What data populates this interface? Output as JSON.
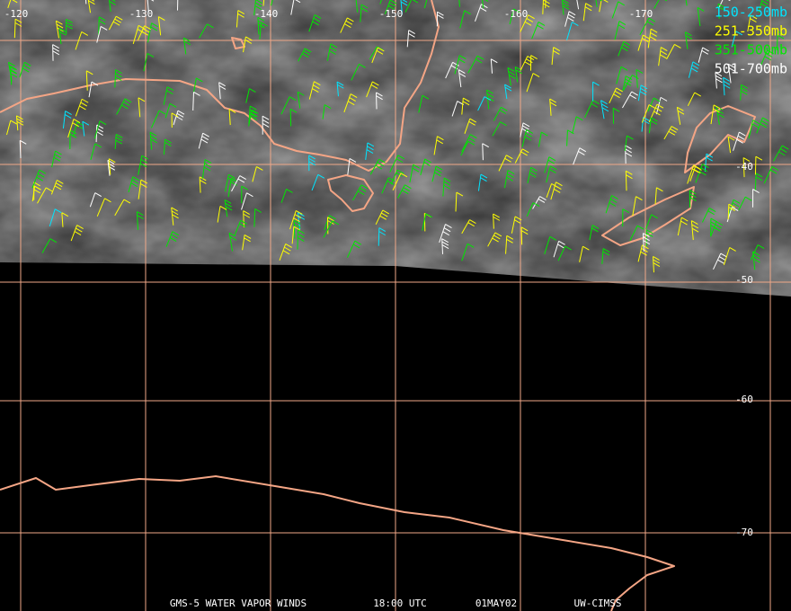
{
  "title": {
    "lon_labels": [
      "-120",
      "-130",
      "-140",
      "-150",
      "-160",
      "-170"
    ],
    "lat_labels": [
      "-40",
      "-50",
      "-60",
      "-70"
    ]
  },
  "legend": [
    {
      "label": "150-250mb",
      "color": "#00e5ff"
    },
    {
      "label": "251-350mb",
      "color": "#ffff00"
    },
    {
      "label": "351-500mb",
      "color": "#00e600"
    },
    {
      "label": "501-700mb",
      "color": "#ffffff"
    }
  ],
  "footer": {
    "product": "GMS-5 WATER VAPOR WINDS",
    "time": "18:00 UTC",
    "date": "01MAY02",
    "source": "UW-CIMSS"
  }
}
